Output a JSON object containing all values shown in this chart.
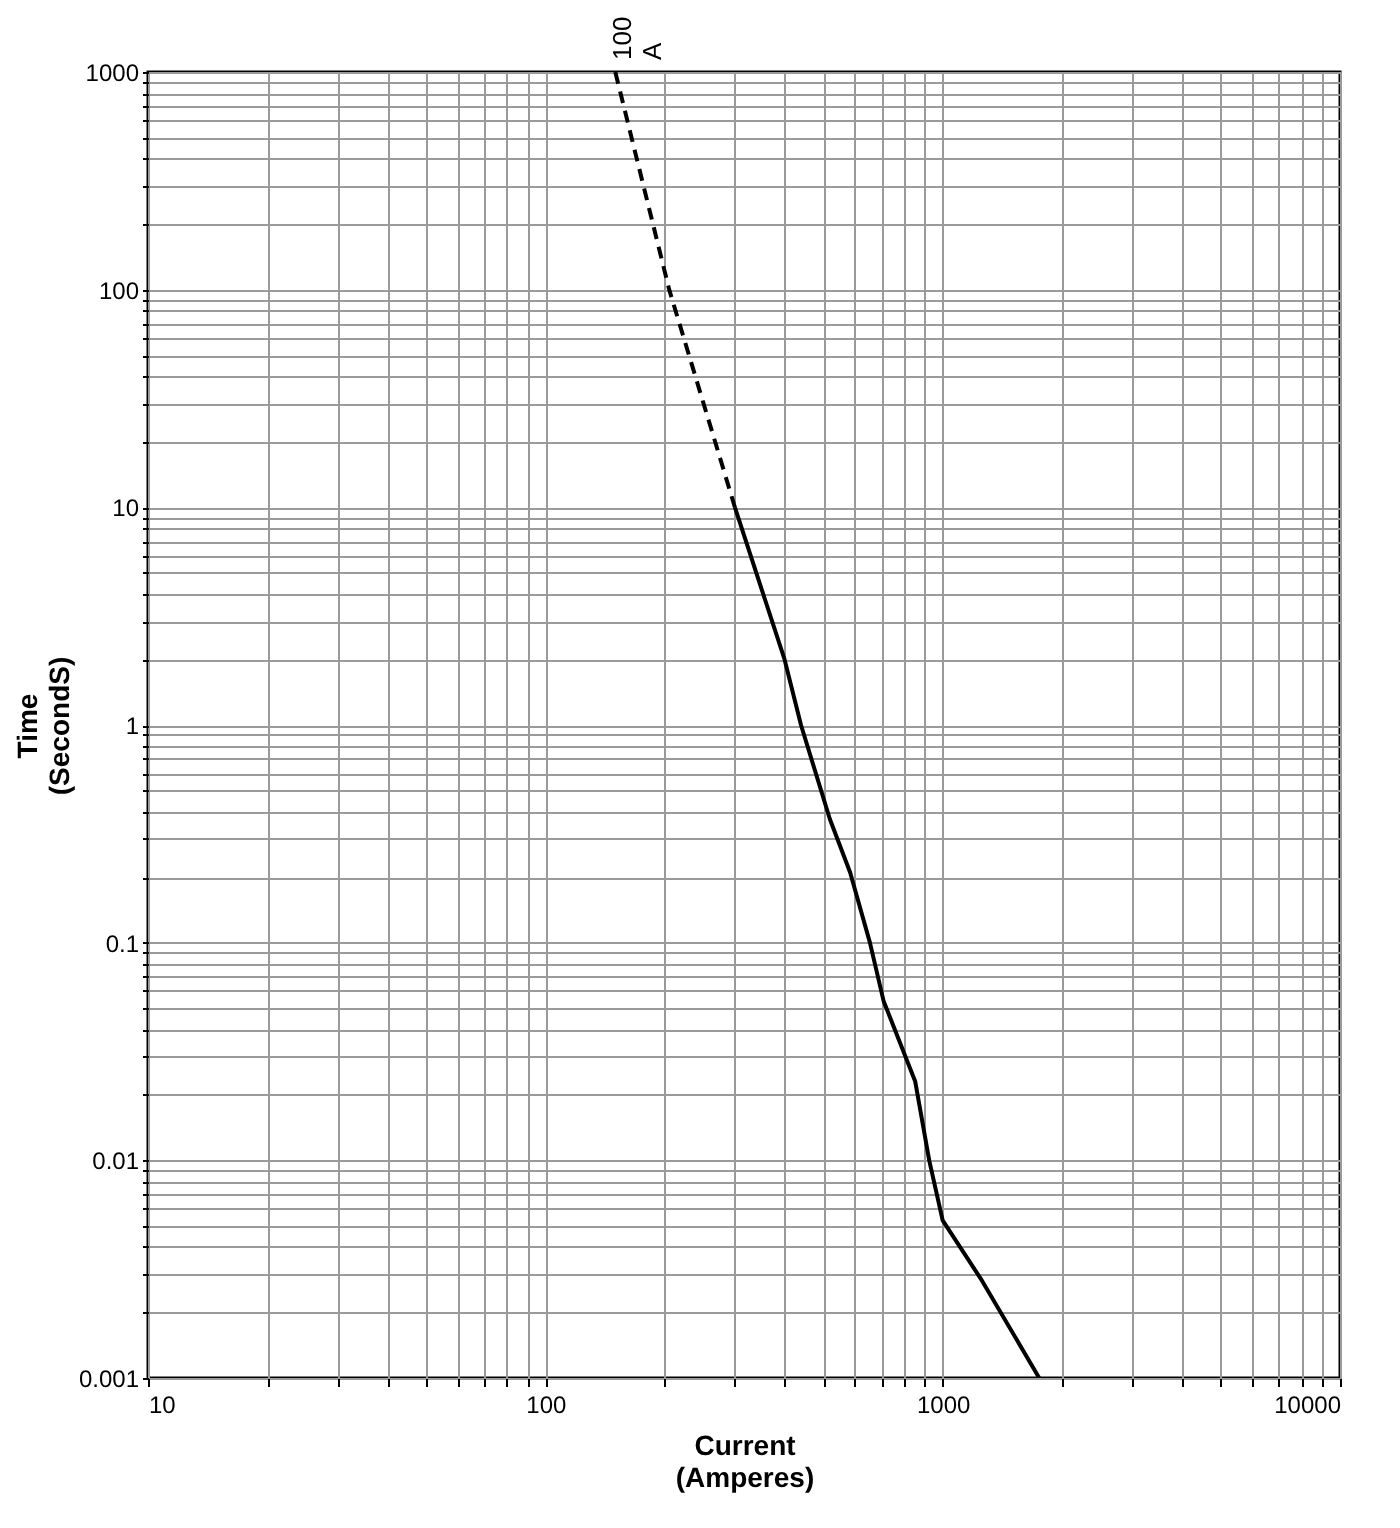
{
  "chart_data": {
    "type": "line",
    "xlabel": "Current (Amperes)",
    "ylabel": "Time (SecondS)",
    "log": "xy",
    "grid": true,
    "marker": "none",
    "xlim": [
      10,
      10000
    ],
    "ylim": [
      0.001,
      1000
    ],
    "xticks": [
      10,
      {
        "value": 20,
        "label": null
      },
      {
        "value": 30,
        "label": null
      },
      {
        "value": 40,
        "label": null
      },
      {
        "value": 50,
        "label": null
      },
      {
        "value": 60,
        "label": null
      },
      {
        "value": 70,
        "label": null
      },
      {
        "value": 80,
        "label": null
      },
      {
        "value": 90,
        "label": null
      },
      100,
      {
        "value": 200,
        "label": null
      },
      {
        "value": 300,
        "label": null
      },
      {
        "value": 400,
        "label": null
      },
      {
        "value": 500,
        "label": null
      },
      {
        "value": 600,
        "label": null
      },
      {
        "value": 700,
        "label": null
      },
      {
        "value": 800,
        "label": null
      },
      {
        "value": 900,
        "label": null
      },
      1000,
      {
        "value": 2000,
        "label": null
      },
      {
        "value": 3000,
        "label": null
      },
      {
        "value": 4000,
        "label": null
      },
      {
        "value": 5000,
        "label": null
      },
      {
        "value": 6000,
        "label": null
      },
      {
        "value": 7000,
        "label": null
      },
      {
        "value": 8000,
        "label": null
      },
      {
        "value": 9000,
        "label": null
      },
      10000
    ],
    "yticks": [
      0.001,
      {
        "value": 0.002,
        "label": null
      },
      {
        "value": 0.003,
        "label": null
      },
      {
        "value": 0.004,
        "label": null
      },
      {
        "value": 0.005,
        "label": null
      },
      {
        "value": 0.006,
        "label": null
      },
      {
        "value": 0.007,
        "label": null
      },
      {
        "value": 0.008,
        "label": null
      },
      {
        "value": 0.009,
        "label": null
      },
      0.01,
      {
        "value": 0.02,
        "label": null
      },
      {
        "value": 0.03,
        "label": null
      },
      {
        "value": 0.04,
        "label": null
      },
      {
        "value": 0.05,
        "label": null
      },
      {
        "value": 0.06,
        "label": null
      },
      {
        "value": 0.07,
        "label": null
      },
      {
        "value": 0.08,
        "label": null
      },
      {
        "value": 0.09,
        "label": null
      },
      0.1,
      {
        "value": 0.2,
        "label": null
      },
      {
        "value": 0.3,
        "label": null
      },
      {
        "value": 0.4,
        "label": null
      },
      {
        "value": 0.5,
        "label": null
      },
      {
        "value": 0.6,
        "label": null
      },
      {
        "value": 0.7,
        "label": null
      },
      {
        "value": 0.8,
        "label": null
      },
      {
        "value": 0.9,
        "label": null
      },
      1,
      {
        "value": 2,
        "label": null
      },
      {
        "value": 3,
        "label": null
      },
      {
        "value": 4,
        "label": null
      },
      {
        "value": 5,
        "label": null
      },
      {
        "value": 6,
        "label": null
      },
      {
        "value": 7,
        "label": null
      },
      {
        "value": 8,
        "label": null
      },
      {
        "value": 9,
        "label": null
      },
      10,
      {
        "value": 20,
        "label": null
      },
      {
        "value": 30,
        "label": null
      },
      {
        "value": 40,
        "label": null
      },
      {
        "value": 50,
        "label": null
      },
      {
        "value": 60,
        "label": null
      },
      {
        "value": 70,
        "label": null
      },
      {
        "value": 80,
        "label": null
      },
      {
        "value": 90,
        "label": null
      },
      100,
      {
        "value": 200,
        "label": null
      },
      {
        "value": 300,
        "label": null
      },
      {
        "value": 400,
        "label": null
      },
      {
        "value": 500,
        "label": null
      },
      {
        "value": 600,
        "label": null
      },
      {
        "value": 700,
        "label": null
      },
      {
        "value": 800,
        "label": null
      },
      {
        "value": 900,
        "label": null
      },
      1000
    ],
    "series": [
      {
        "color": "#000000",
        "line_style": "dashed",
        "x": [
          150,
          205,
          300
        ],
        "values": [
          1000,
          100,
          10
        ]
      },
      {
        "color": "#000000",
        "line_style": "solid",
        "x": [
          300,
          400,
          440,
          520,
          585,
          656,
          710,
          853,
          925,
          1000,
          1256,
          1750
        ],
        "values": [
          10,
          2,
          1,
          0.37,
          0.21,
          0.1,
          0.054,
          0.023,
          0.01,
          0.0053,
          0.0028,
          0.001
        ]
      }
    ],
    "annotations": [
      {
        "text": "100 A",
        "x": 150,
        "y": 1000
      }
    ]
  }
}
